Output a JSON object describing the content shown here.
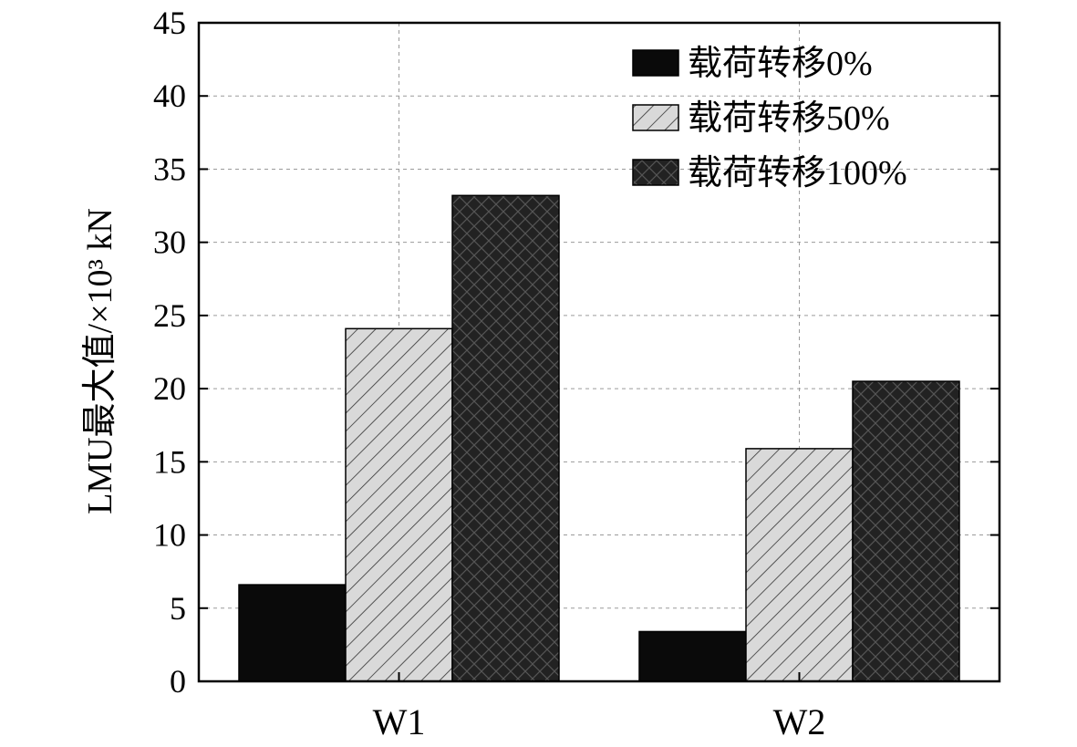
{
  "chart_data": {
    "type": "bar",
    "categories": [
      "W1",
      "W2"
    ],
    "series": [
      {
        "name": "载荷转移0%",
        "values": [
          6.6,
          3.4
        ],
        "color": "#0a0a0a",
        "pattern": "solid"
      },
      {
        "name": "载荷转移50%",
        "values": [
          24.1,
          15.9
        ],
        "color": "#d9d9d9",
        "pattern": "diagonal-hatch"
      },
      {
        "name": "载荷转移100%",
        "values": [
          33.2,
          20.5
        ],
        "color": "#222222",
        "pattern": "crosshatch"
      }
    ],
    "title": "",
    "xlabel": "",
    "ylabel": "LMU最大值/×10³ kN",
    "ylim": [
      0,
      45
    ],
    "yticks": [
      0,
      5,
      10,
      15,
      20,
      25,
      30,
      35,
      40,
      45
    ],
    "grid": true,
    "legend_position": "top-right"
  }
}
